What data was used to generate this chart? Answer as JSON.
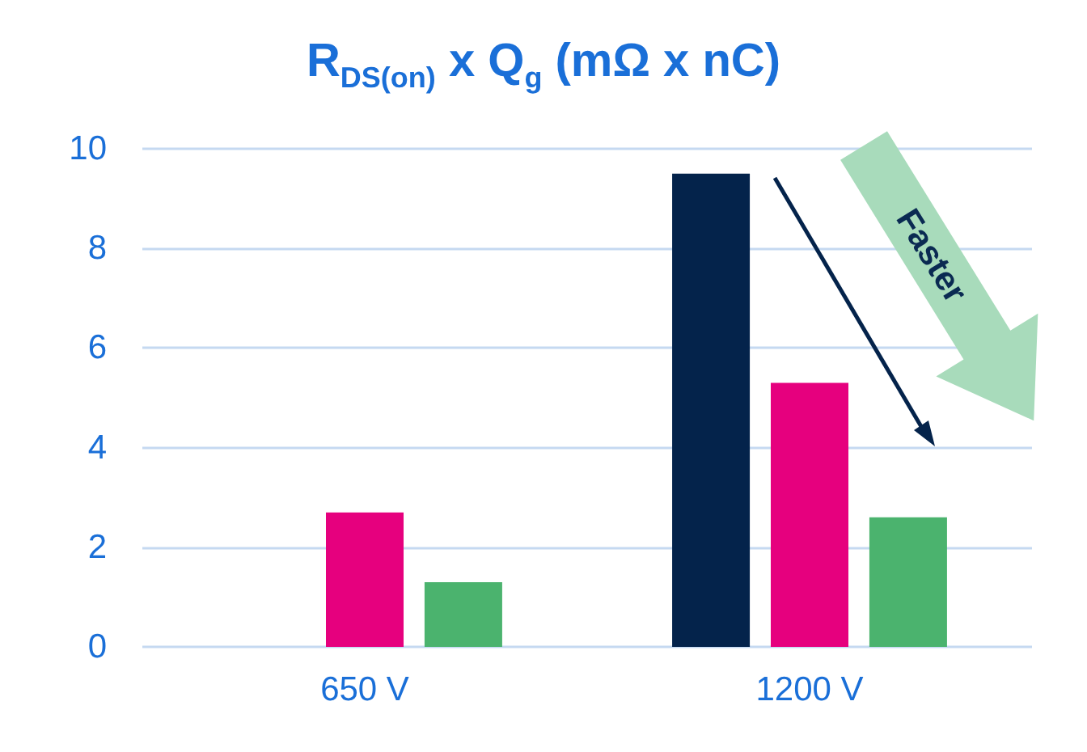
{
  "chart_data": {
    "type": "bar",
    "title": "R$_{DS(on)}$ x Q$_{g}$ (mΩ x nC)",
    "categories": [
      "650 V",
      "1200 V"
    ],
    "series": [
      {
        "color": "#04234b",
        "values": [
          null,
          9.5
        ]
      },
      {
        "color": "#e6007e",
        "values": [
          2.7,
          5.3
        ]
      },
      {
        "color": "#4bb36e",
        "values": [
          1.3,
          2.6
        ]
      }
    ],
    "ylim": [
      0,
      10
    ],
    "yticks": [
      0,
      2,
      4,
      6,
      8,
      10
    ],
    "grid": "y",
    "annotations": [
      "Faster"
    ]
  }
}
